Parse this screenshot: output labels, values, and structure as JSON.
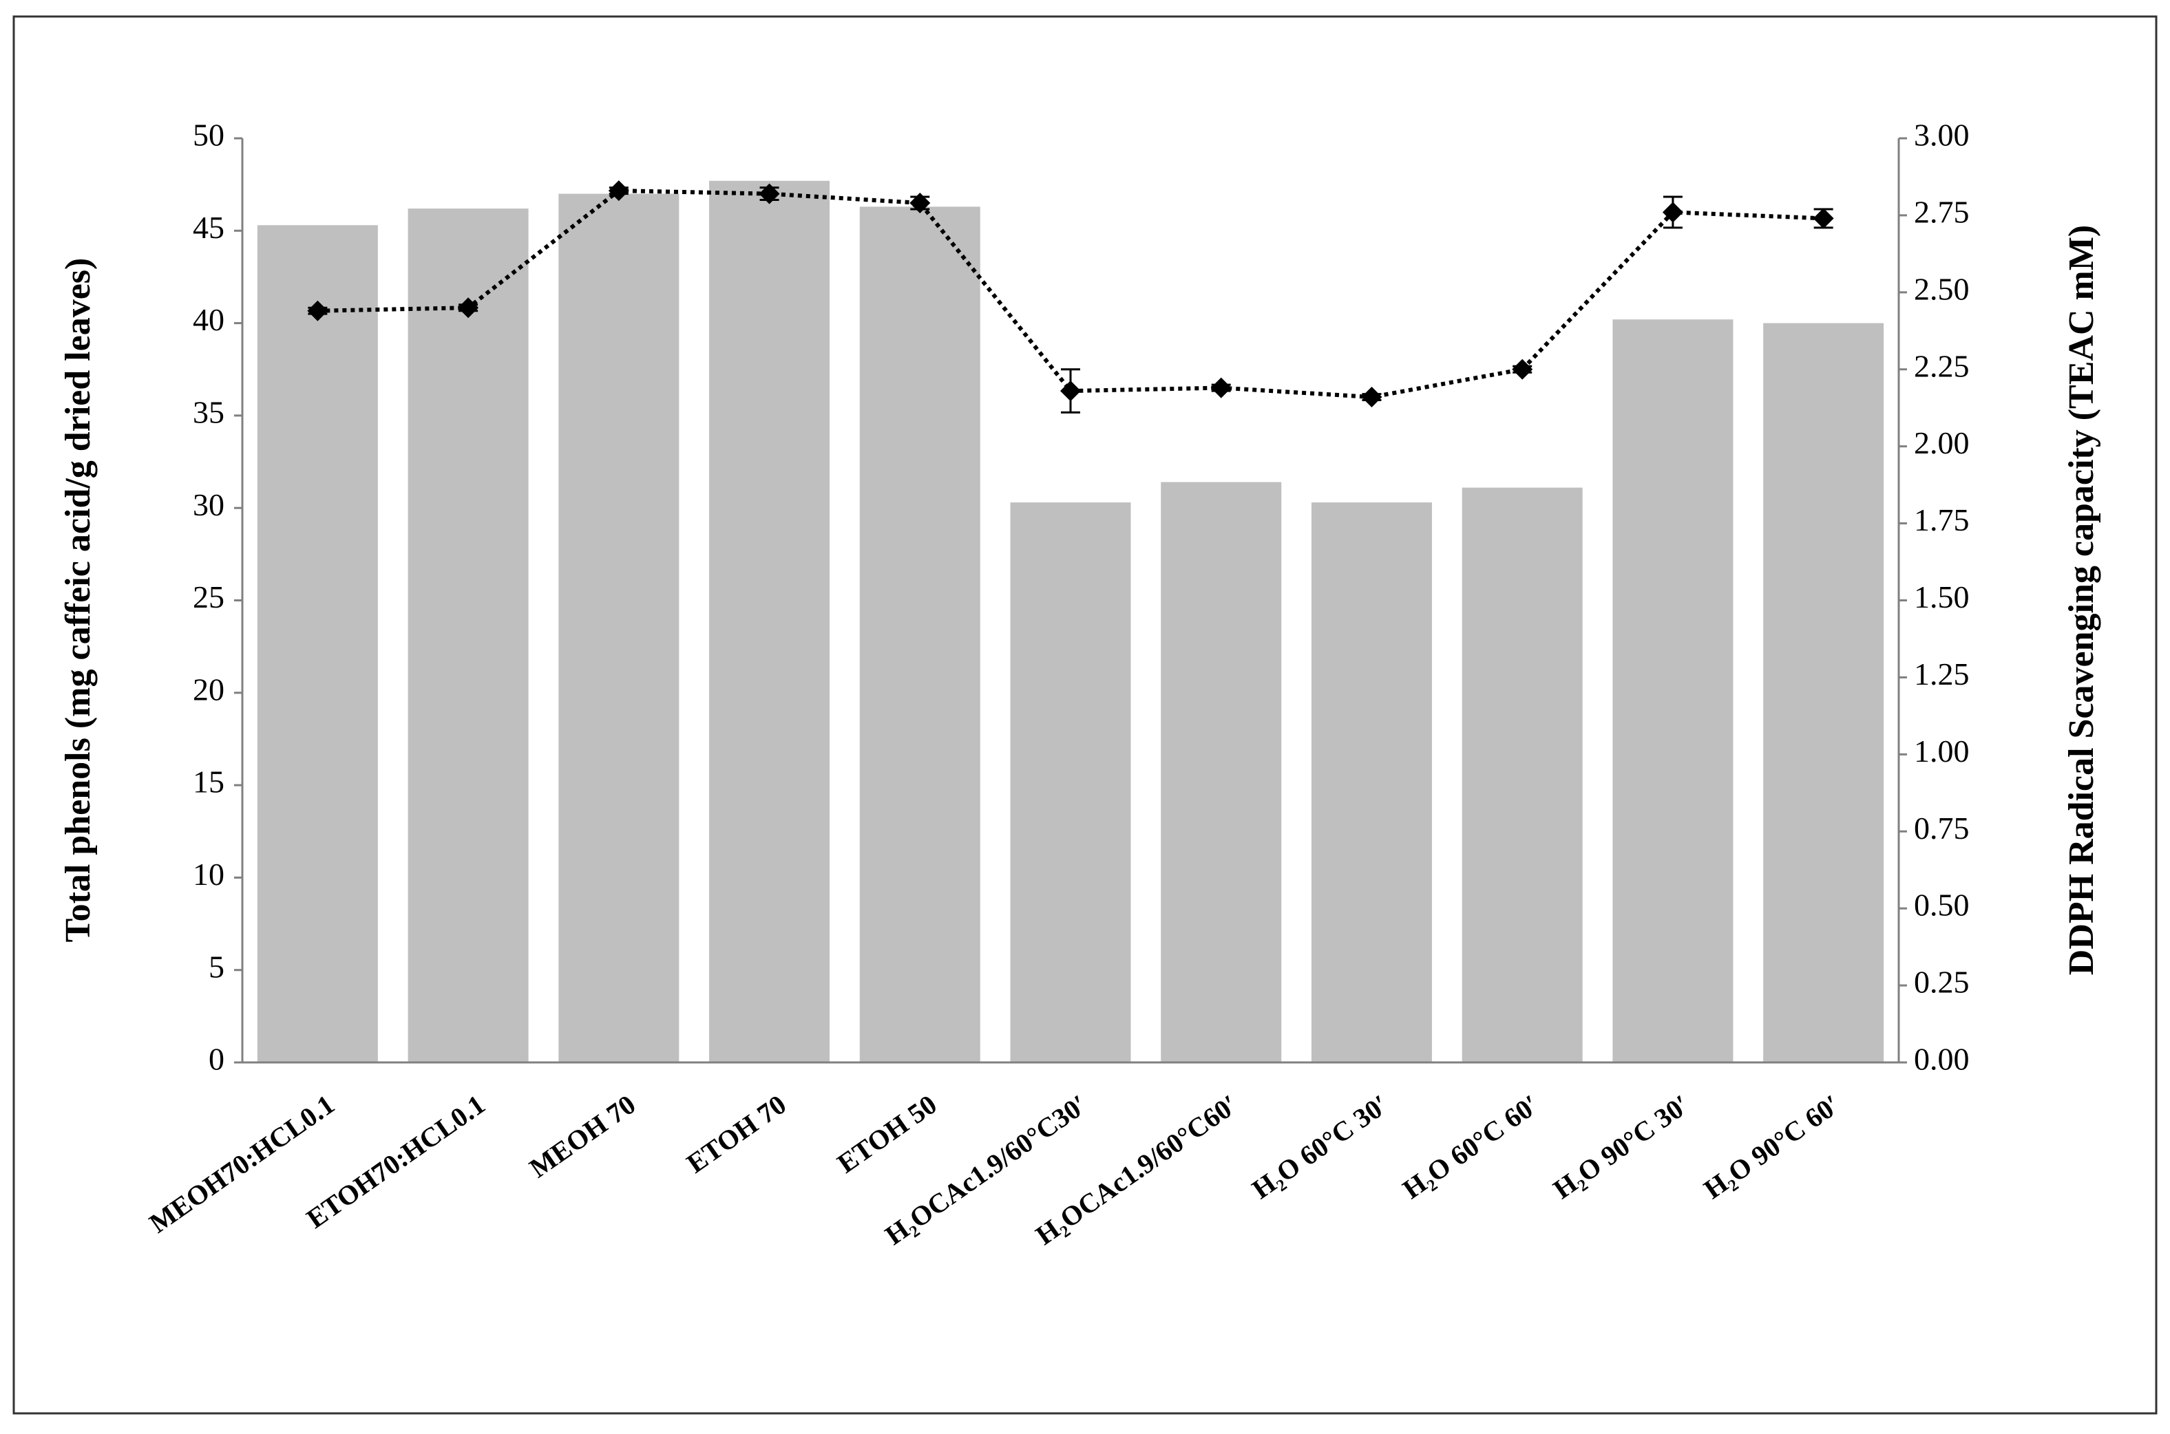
{
  "chart_data": {
    "type": "bar",
    "categories": [
      "MEOH70:HCL0.1",
      "ETOH70:HCL0.1",
      "MEOH 70",
      "ETOH 70",
      "ETOH 50",
      "H₂OCAc1.9/60°C30′",
      "H₂OCAc1.9/60°C60′",
      "H₂O 60°C 30′",
      "H₂O 60°C 60′",
      "H₂O 90°C 30′",
      "H₂O 90°C 60′"
    ],
    "y_label": "Total phenols (mg caffeic acid/g dried leaves)",
    "y2_label": "DDPH Radical Scavenging capacity (TEAC mM)",
    "series": [
      {
        "type": "bar",
        "color": "#bfbfbf",
        "values": [
          45.3,
          46.2,
          47.0,
          47.7,
          46.3,
          30.3,
          31.4,
          30.3,
          31.1,
          40.2,
          40.0
        ]
      },
      {
        "type": "line",
        "axis": "y2",
        "color": "#000000",
        "values": [
          2.44,
          2.45,
          2.83,
          2.82,
          2.79,
          2.18,
          2.19,
          2.16,
          2.25,
          2.76,
          2.74
        ],
        "errors": [
          0.01,
          0.01,
          0.01,
          0.02,
          0.02,
          0.07,
          0.01,
          0.01,
          0.01,
          0.05,
          0.03
        ]
      }
    ],
    "ylim": [
      0,
      50
    ],
    "yticks": [
      0,
      5,
      10,
      15,
      20,
      25,
      30,
      35,
      40,
      45,
      50
    ],
    "y2lim": [
      0,
      3
    ],
    "y2ticks": [
      {
        "value": 0,
        "label": "0.00"
      },
      {
        "value": 0.25,
        "label": "0.25"
      },
      {
        "value": 0.5,
        "label": "0.50"
      },
      {
        "value": 0.75,
        "label": "0.75"
      },
      {
        "value": 1,
        "label": "1.00"
      },
      {
        "value": 1.25,
        "label": "1.25"
      },
      {
        "value": 1.5,
        "label": "1.50"
      },
      {
        "value": 1.75,
        "label": "1.75"
      },
      {
        "value": 2,
        "label": "2.00"
      },
      {
        "value": 2.25,
        "label": "2.25"
      },
      {
        "value": 2.5,
        "label": "2.50"
      },
      {
        "value": 2.75,
        "label": "2.75"
      },
      {
        "value": 3,
        "label": "3.00"
      }
    ],
    "grid": false
  }
}
